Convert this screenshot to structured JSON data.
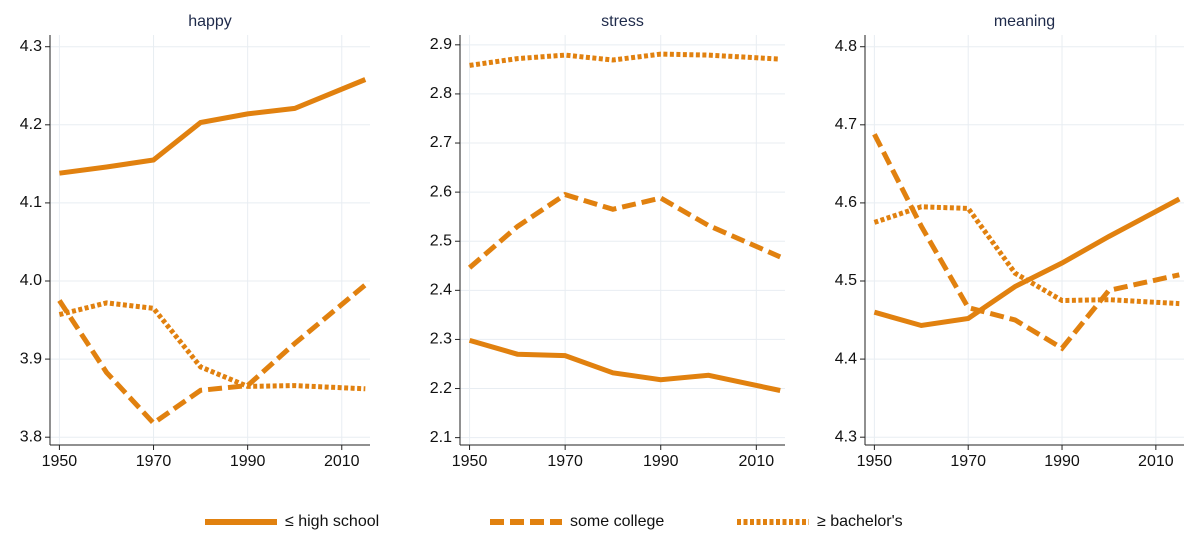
{
  "chart_data": [
    {
      "type": "line",
      "title": "happy",
      "x": [
        1950,
        1960,
        1970,
        1980,
        1990,
        2000,
        2015
      ],
      "series": [
        {
          "name": "≤ high school",
          "color": "#e1810f",
          "style": "solid",
          "values": [
            4.138,
            4.146,
            4.155,
            4.203,
            4.214,
            4.221,
            4.258
          ]
        },
        {
          "name": "some college",
          "color": "#e1810f",
          "style": "dashed",
          "values": [
            3.975,
            3.883,
            3.818,
            3.86,
            3.866,
            3.92,
            3.995
          ]
        },
        {
          "name": "≥ bachelor's",
          "color": "#e1810f",
          "style": "dotted",
          "values": [
            3.957,
            3.972,
            3.965,
            3.89,
            3.865,
            3.866,
            3.862
          ]
        }
      ],
      "xlim": [
        1948,
        2016
      ],
      "xticks": [
        1950,
        1970,
        1990,
        2010
      ],
      "ylim": [
        3.79,
        4.315
      ],
      "yticks": [
        3.8,
        3.9,
        {
          "value": 4,
          "label": "4.0"
        },
        4.1,
        4.2,
        4.3
      ],
      "grid": true
    },
    {
      "type": "line",
      "title": "stress",
      "x": [
        1950,
        1960,
        1970,
        1980,
        1990,
        2000,
        2015
      ],
      "series": [
        {
          "name": "≤ high school",
          "color": "#e1810f",
          "style": "solid",
          "values": [
            2.298,
            2.27,
            2.267,
            2.232,
            2.218,
            2.227,
            2.196
          ]
        },
        {
          "name": "some college",
          "color": "#e1810f",
          "style": "dashed",
          "values": [
            2.446,
            2.53,
            2.595,
            2.565,
            2.588,
            2.532,
            2.468
          ]
        },
        {
          "name": "≥ bachelor's",
          "color": "#e1810f",
          "style": "dotted",
          "values": [
            2.858,
            2.872,
            2.879,
            2.869,
            2.881,
            2.879,
            2.871
          ]
        }
      ],
      "xlim": [
        1948,
        2016
      ],
      "xticks": [
        1950,
        1970,
        1990,
        2010
      ],
      "ylim": [
        2.085,
        2.92
      ],
      "yticks": [
        2.1,
        2.2,
        2.3,
        2.4,
        2.5,
        2.6,
        2.7,
        2.8,
        2.9
      ],
      "grid": true
    },
    {
      "type": "line",
      "title": "meaning",
      "x": [
        1950,
        1960,
        1970,
        1980,
        1990,
        2000,
        2015
      ],
      "series": [
        {
          "name": "≤ high school",
          "color": "#e1810f",
          "style": "solid",
          "values": [
            4.46,
            4.443,
            4.452,
            4.493,
            4.523,
            4.557,
            4.605
          ]
        },
        {
          "name": "some college",
          "color": "#e1810f",
          "style": "dashed",
          "values": [
            4.688,
            4.57,
            4.466,
            4.45,
            4.414,
            4.488,
            4.508
          ]
        },
        {
          "name": "≥ bachelor's",
          "color": "#e1810f",
          "style": "dotted",
          "values": [
            4.575,
            4.595,
            4.593,
            4.51,
            4.475,
            4.476,
            4.471
          ]
        }
      ],
      "xlim": [
        1948,
        2016
      ],
      "xticks": [
        1950,
        1970,
        1990,
        2010
      ],
      "ylim": [
        4.29,
        4.815
      ],
      "yticks": [
        4.3,
        4.4,
        4.5,
        4.6,
        4.7,
        4.8
      ],
      "grid": true
    }
  ]
}
